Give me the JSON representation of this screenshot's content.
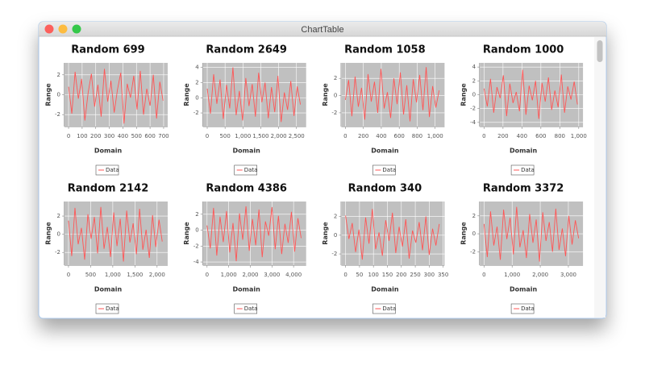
{
  "window_title": "ChartTable",
  "chart_data": [
    {
      "type": "line",
      "title": "Random 699",
      "x_label": "Domain",
      "y_label": "Range",
      "grid": true,
      "legend": "bottom",
      "x": [
        0,
        24,
        48,
        72,
        96,
        120,
        144,
        168,
        192,
        216,
        240,
        264,
        288,
        312,
        336,
        360,
        384,
        408,
        432,
        456,
        480,
        504,
        528,
        552,
        576,
        600,
        624,
        648,
        672,
        696
      ],
      "series": [
        {
          "name": "Data",
          "color": "#ff5555",
          "values": [
            0.8,
            -1.9,
            2.3,
            -0.4,
            1.6,
            -2.6,
            0.2,
            2.1,
            -1.2,
            1.0,
            -2.2,
            2.6,
            -0.7,
            1.4,
            -1.8,
            0.5,
            2.2,
            -2.9,
            1.1,
            -0.3,
            1.9,
            -1.5,
            2.4,
            -2.0,
            0.6,
            -1.1,
            2.0,
            -2.4,
            1.3,
            -0.6
          ]
        }
      ],
      "xlim": [
        -30,
        730
      ],
      "ylim": [
        -3.2,
        3.2
      ],
      "xticks": [
        0,
        100,
        200,
        300,
        400,
        500,
        600,
        700
      ],
      "yticks": [
        -2,
        0,
        2
      ]
    },
    {
      "type": "line",
      "title": "Random 2649",
      "x_label": "Domain",
      "y_label": "Range",
      "grid": true,
      "legend": "bottom",
      "x": [
        0,
        90,
        180,
        270,
        360,
        450,
        540,
        630,
        720,
        810,
        900,
        990,
        1080,
        1170,
        1260,
        1350,
        1440,
        1530,
        1620,
        1710,
        1800,
        1890,
        1980,
        2070,
        2160,
        2250,
        2340,
        2430,
        2520,
        2610
      ],
      "series": [
        {
          "name": "Data",
          "color": "#ff5555",
          "values": [
            1.2,
            -2.1,
            3.1,
            -0.8,
            2.4,
            -2.8,
            1.7,
            -1.4,
            4.0,
            -2.3,
            0.9,
            -3.0,
            2.6,
            -1.1,
            1.8,
            -2.5,
            3.3,
            -0.6,
            2.0,
            -2.7,
            1.4,
            -1.9,
            2.9,
            -3.2,
            0.7,
            -1.6,
            2.2,
            -2.4,
            1.5,
            -0.9
          ]
        }
      ],
      "xlim": [
        -120,
        2770
      ],
      "ylim": [
        -3.8,
        4.6
      ],
      "xticks": [
        0,
        500,
        {
          "value": 1000,
          "label": "1,000"
        },
        {
          "value": 1500,
          "label": "1,500"
        },
        {
          "value": 2000,
          "label": "2,000"
        },
        {
          "value": 2500,
          "label": "2,500"
        }
      ],
      "yticks": [
        -2,
        0,
        2,
        4
      ]
    },
    {
      "type": "line",
      "title": "Random 1058",
      "x_label": "Domain",
      "y_label": "Range",
      "grid": true,
      "legend": "bottom",
      "x": [
        0,
        36,
        72,
        108,
        144,
        180,
        216,
        252,
        288,
        324,
        360,
        396,
        432,
        468,
        504,
        540,
        576,
        612,
        648,
        684,
        720,
        756,
        792,
        828,
        864,
        900,
        936,
        972,
        1008,
        1044
      ],
      "series": [
        {
          "name": "Data",
          "color": "#ff5555",
          "values": [
            -0.5,
            1.8,
            -2.4,
            2.2,
            -1.3,
            0.9,
            -2.8,
            2.5,
            -0.7,
            1.6,
            -2.0,
            3.1,
            -1.5,
            0.4,
            -2.6,
            2.0,
            -1.0,
            2.7,
            -2.2,
            1.2,
            -3.0,
            1.9,
            -0.8,
            2.4,
            -1.7,
            3.3,
            -2.5,
            1.1,
            -1.4,
            0.6
          ]
        }
      ],
      "xlim": [
        -45,
        1105
      ],
      "ylim": [
        -3.6,
        3.8
      ],
      "xticks": [
        0,
        200,
        400,
        600,
        800,
        {
          "value": 1000,
          "label": "1,000"
        }
      ],
      "yticks": [
        -2,
        0,
        2
      ]
    },
    {
      "type": "line",
      "title": "Random 1000",
      "x_label": "Domain",
      "y_label": "Range",
      "grid": true,
      "legend": "bottom",
      "x": [
        0,
        34,
        68,
        102,
        136,
        170,
        204,
        238,
        272,
        306,
        340,
        374,
        408,
        442,
        476,
        510,
        544,
        578,
        612,
        646,
        680,
        714,
        748,
        782,
        816,
        850,
        884,
        918,
        952,
        986
      ],
      "series": [
        {
          "name": "Data",
          "color": "#ff5555",
          "values": [
            0.9,
            -1.7,
            2.3,
            -2.6,
            1.1,
            -0.5,
            2.8,
            -3.1,
            1.6,
            -1.2,
            0.4,
            -2.4,
            3.6,
            -2.9,
            1.3,
            -0.8,
            2.0,
            -3.5,
            1.7,
            -1.0,
            2.5,
            -2.2,
            0.6,
            -1.8,
            2.9,
            -2.6,
            1.2,
            -0.7,
            1.9,
            -1.4
          ]
        }
      ],
      "xlim": [
        -45,
        1045
      ],
      "ylim": [
        -4.6,
        4.6
      ],
      "xticks": [
        0,
        200,
        400,
        600,
        800,
        {
          "value": 1000,
          "label": "1,000"
        }
      ],
      "yticks": [
        -4,
        -2,
        0,
        2,
        4
      ]
    },
    {
      "type": "line",
      "title": "Random 2142",
      "x_label": "Domain",
      "y_label": "Range",
      "grid": true,
      "legend": "bottom",
      "x": [
        0,
        73,
        146,
        219,
        292,
        365,
        438,
        511,
        584,
        657,
        730,
        803,
        876,
        949,
        1022,
        1095,
        1168,
        1241,
        1314,
        1387,
        1460,
        1533,
        1606,
        1679,
        1752,
        1825,
        1898,
        1971,
        2044,
        2117
      ],
      "series": [
        {
          "name": "Data",
          "color": "#ff5555",
          "values": [
            1.5,
            -2.4,
            2.9,
            -1.1,
            0.7,
            -2.8,
            2.2,
            -0.5,
            1.9,
            -2.1,
            3.0,
            -1.6,
            0.8,
            -2.5,
            2.4,
            -1.3,
            1.7,
            -3.0,
            2.6,
            -0.9,
            1.2,
            -2.2,
            2.8,
            -1.7,
            0.5,
            -2.6,
            2.1,
            -1.4,
            1.6,
            -0.8
          ]
        }
      ],
      "xlim": [
        -90,
        2240
      ],
      "ylim": [
        -3.4,
        3.6
      ],
      "xticks": [
        0,
        500,
        {
          "value": 1000,
          "label": "1,000"
        },
        {
          "value": 1500,
          "label": "1,500"
        },
        {
          "value": 2000,
          "label": "2,000"
        }
      ],
      "yticks": [
        -2,
        0,
        2
      ]
    },
    {
      "type": "line",
      "title": "Random 4386",
      "x_label": "Domain",
      "y_label": "Range",
      "grid": true,
      "legend": "bottom",
      "x": [
        0,
        150,
        300,
        450,
        600,
        750,
        900,
        1050,
        1200,
        1350,
        1500,
        1650,
        1800,
        1950,
        2100,
        2250,
        2400,
        2550,
        2700,
        2850,
        3000,
        3150,
        3300,
        3450,
        3600,
        3750,
        3900,
        4050,
        4200,
        4350
      ],
      "series": [
        {
          "name": "Data",
          "color": "#ff5555",
          "values": [
            0.6,
            -2.3,
            2.8,
            -3.2,
            1.7,
            -1.5,
            2.4,
            -2.8,
            0.9,
            -3.9,
            2.1,
            -1.2,
            3.0,
            -2.6,
            1.4,
            -1.9,
            2.6,
            -3.4,
            1.1,
            -0.7,
            2.9,
            -2.4,
            1.8,
            -3.0,
            0.8,
            -1.6,
            2.3,
            -2.7,
            1.5,
            -1.0
          ]
        }
      ],
      "xlim": [
        -190,
        4580
      ],
      "ylim": [
        -4.4,
        3.6
      ],
      "xticks": [
        0,
        {
          "value": 1000,
          "label": "1,000"
        },
        {
          "value": 2000,
          "label": "2,000"
        },
        {
          "value": 3000,
          "label": "3,000"
        },
        {
          "value": 4000,
          "label": "4,000"
        }
      ],
      "yticks": [
        -4,
        -2,
        0,
        2
      ]
    },
    {
      "type": "line",
      "title": "Random 340",
      "x_label": "Domain",
      "y_label": "Range",
      "grid": true,
      "legend": "bottom",
      "x": [
        0,
        12,
        24,
        36,
        48,
        60,
        72,
        84,
        96,
        108,
        120,
        132,
        144,
        156,
        168,
        180,
        192,
        204,
        216,
        228,
        240,
        252,
        264,
        276,
        288,
        300,
        312,
        324,
        336
      ],
      "series": [
        {
          "name": "Data",
          "color": "#ff5555",
          "values": [
            2.1,
            -0.4,
            1.3,
            -1.8,
            0.6,
            -2.6,
            1.9,
            -0.9,
            2.8,
            -1.5,
            0.3,
            -2.2,
            1.6,
            -0.6,
            2.4,
            -1.9,
            0.9,
            -1.2,
            1.7,
            -2.5,
            0.5,
            -0.8,
            1.4,
            -1.6,
            2.0,
            -2.1,
            0.7,
            -1.1,
            1.2
          ]
        }
      ],
      "xlim": [
        -15,
        355
      ],
      "ylim": [
        -3.2,
        3.6
      ],
      "xticks": [
        0,
        50,
        100,
        150,
        200,
        250,
        300,
        350
      ],
      "yticks": [
        -2,
        0,
        2
      ]
    },
    {
      "type": "line",
      "title": "Random 3372",
      "x_label": "Domain",
      "y_label": "Range",
      "grid": true,
      "legend": "bottom",
      "x": [
        0,
        116,
        232,
        348,
        464,
        580,
        696,
        812,
        928,
        1044,
        1160,
        1276,
        1392,
        1508,
        1624,
        1740,
        1856,
        1972,
        2088,
        2204,
        2320,
        2436,
        2552,
        2668,
        2784,
        2900,
        3016,
        3132,
        3248,
        3364
      ],
      "series": [
        {
          "name": "Data",
          "color": "#ff5555",
          "values": [
            1.1,
            -2.6,
            2.5,
            -1.3,
            0.8,
            -2.9,
            2.7,
            -0.6,
            1.8,
            -2.3,
            3.0,
            -1.5,
            0.4,
            -2.7,
            2.2,
            -1.0,
            1.6,
            -3.1,
            2.4,
            -0.8,
            1.3,
            -2.0,
            2.8,
            -1.8,
            0.6,
            -2.5,
            2.0,
            -1.2,
            1.5,
            -0.5
          ]
        }
      ],
      "xlim": [
        -150,
        3520
      ],
      "ylim": [
        -3.5,
        3.6
      ],
      "xticks": [
        0,
        {
          "value": 1000,
          "label": "1,000"
        },
        {
          "value": 2000,
          "label": "2,000"
        },
        {
          "value": 3000,
          "label": "3,000"
        }
      ],
      "yticks": [
        -2,
        0,
        2
      ]
    }
  ]
}
